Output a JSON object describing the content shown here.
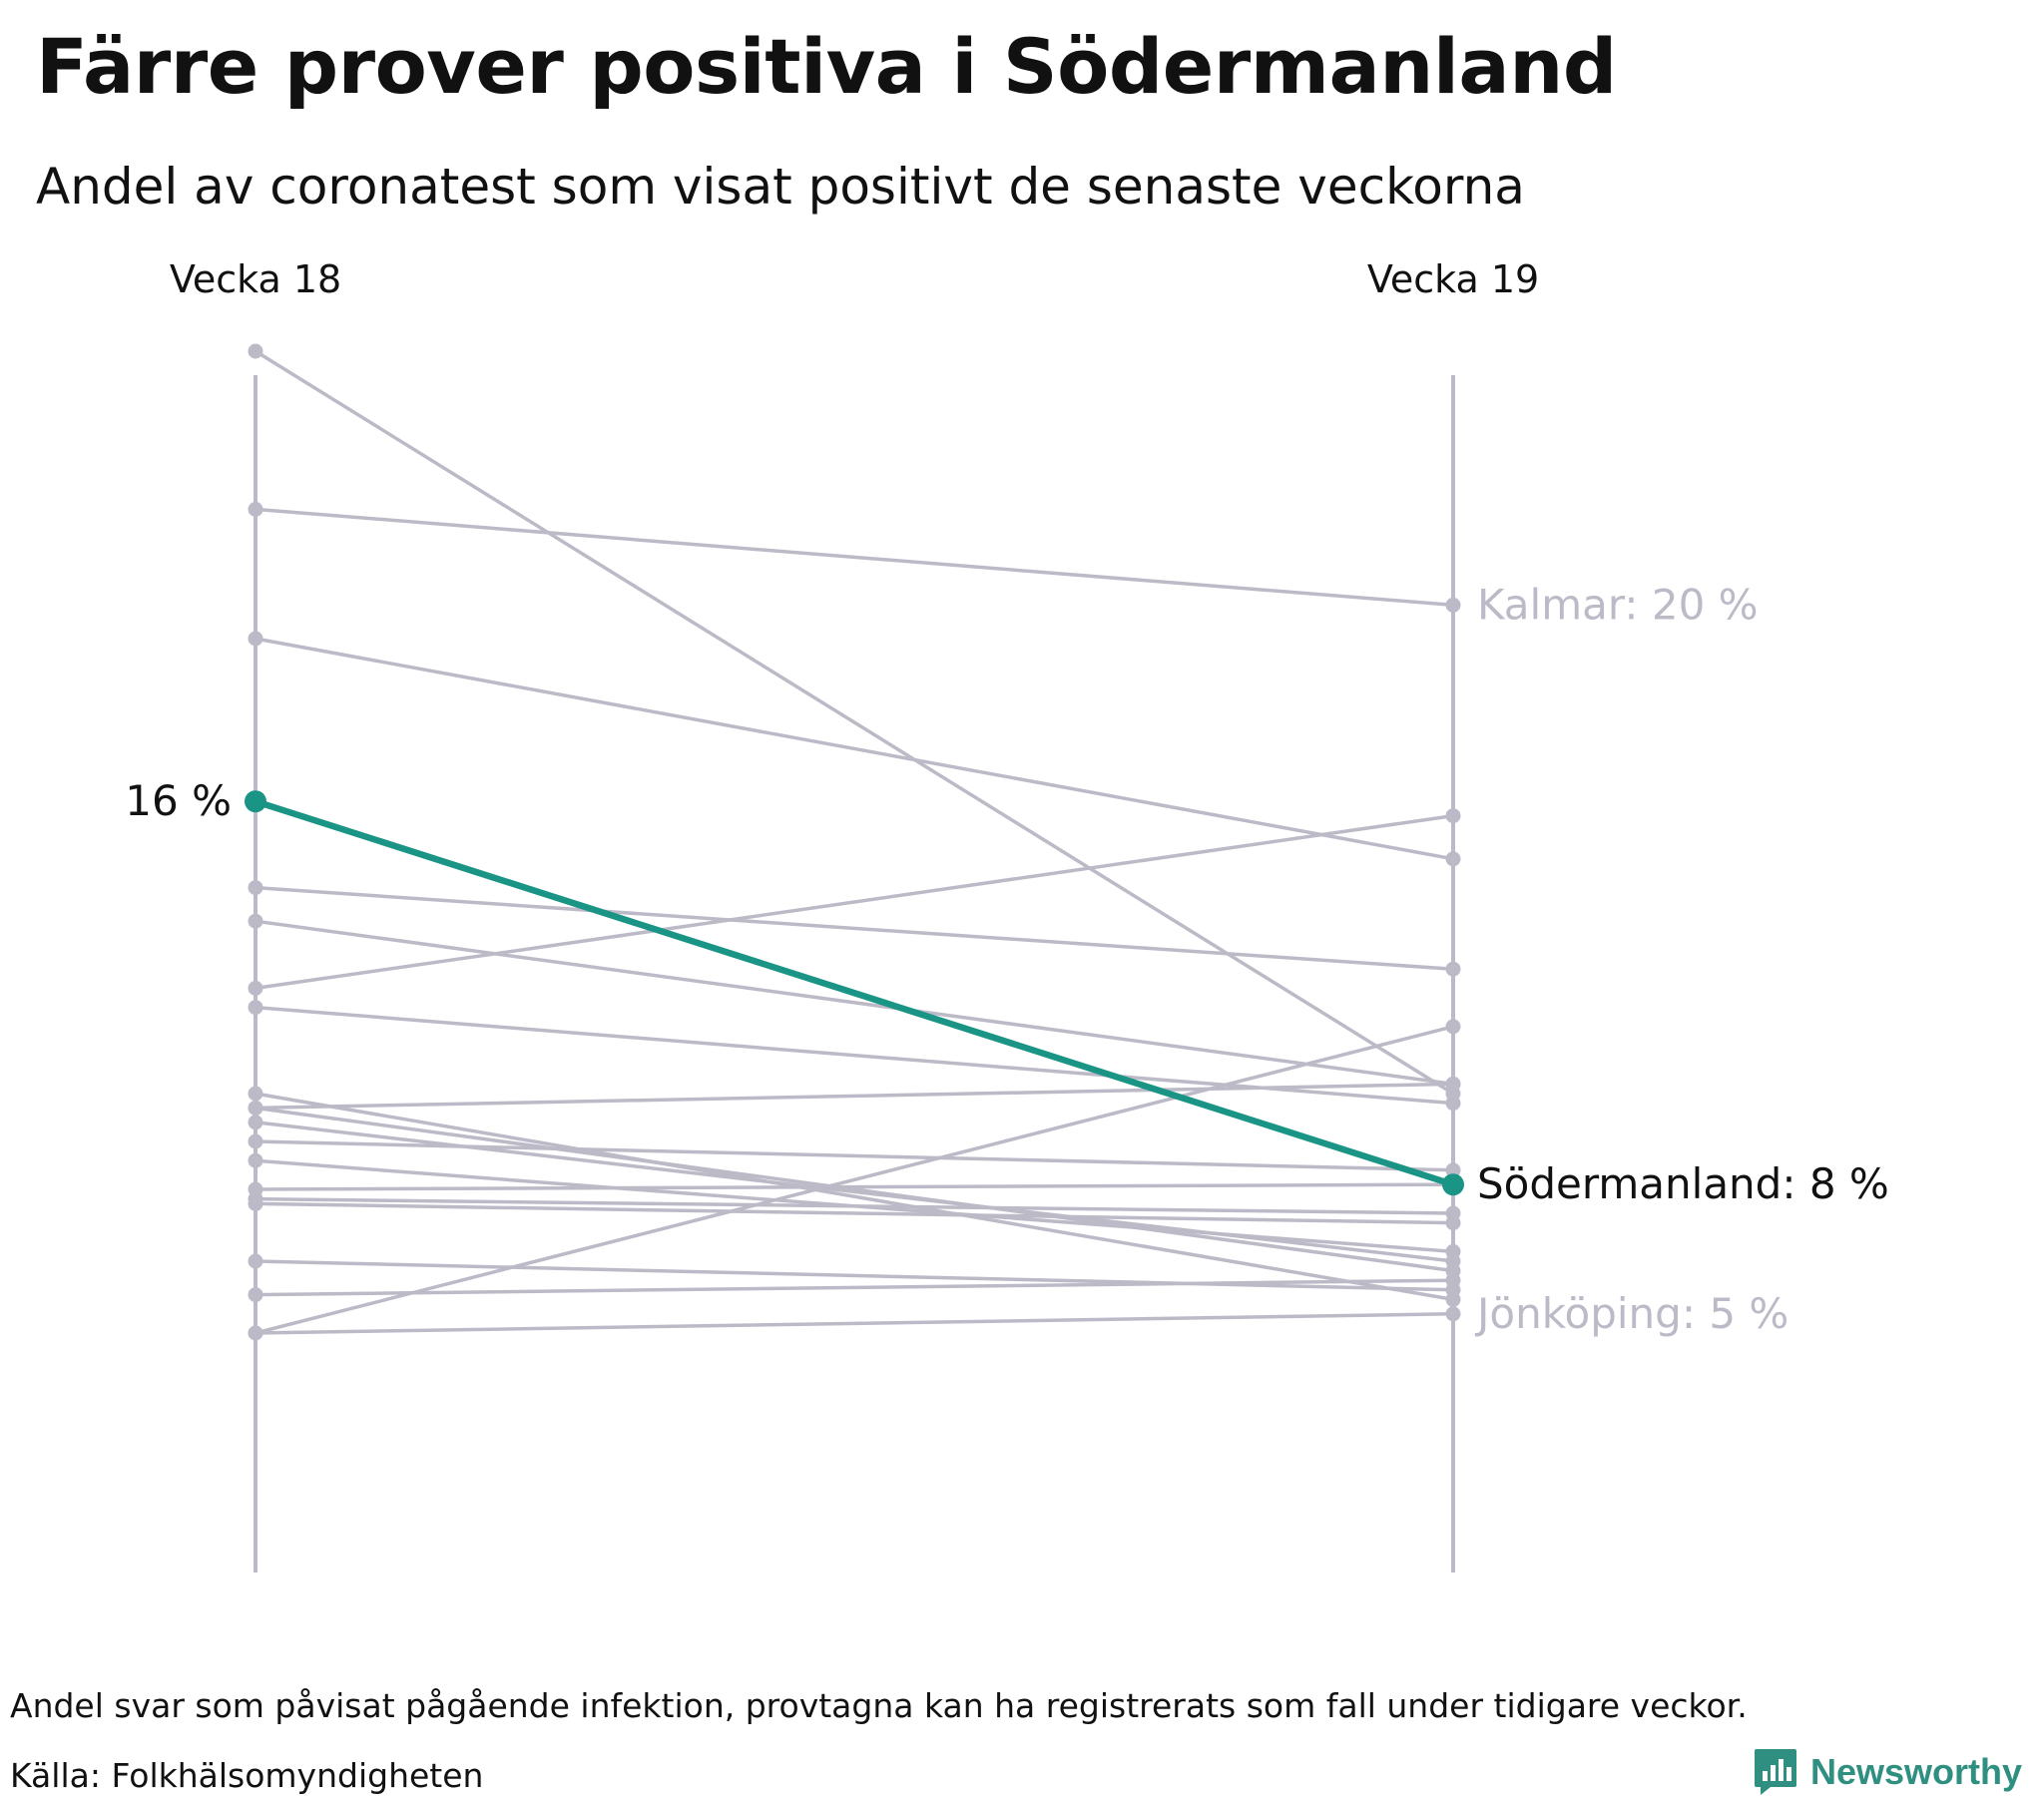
{
  "title": "Färre prover positiva i Södermanland",
  "subtitle": "Andel av coronatest som visat positivt de senaste veckorna",
  "note": "Andel svar som påvisat pågående infektion, provtagna kan ha registrerats som fall under tidigare veckor.",
  "source": "Källa: Folkhälsomyndigheten",
  "brand": {
    "name": "Newsworthy",
    "icon": "bar-chart-logo-icon"
  },
  "colors": {
    "highlight": "#1a9485",
    "muted": "#bdbac8",
    "text": "#111111",
    "muted_text": "#bdbac8"
  },
  "chart_data": {
    "type": "slope",
    "columns": [
      "Vecka 18",
      "Vecka 19"
    ],
    "y_range": [
      0,
      25
    ],
    "highlight": {
      "name": "Södermanland",
      "start_label": "16 %",
      "end_label": "Södermanland: 8 %",
      "values": [
        16.1,
        8.1
      ]
    },
    "labeled_series": [
      {
        "name": "Kalmar",
        "label": "Kalmar: 20 %",
        "values": [
          22.2,
          20.2
        ]
      },
      {
        "name": "Jönköping",
        "label": "Jönköping: 5 %",
        "values": [
          5.0,
          5.4
        ]
      }
    ],
    "other_series": [
      [
        25.5,
        10.0
      ],
      [
        19.5,
        14.9
      ],
      [
        14.3,
        12.6
      ],
      [
        13.6,
        10.2
      ],
      [
        12.2,
        15.8
      ],
      [
        11.8,
        9.8
      ],
      [
        10.0,
        5.7
      ],
      [
        9.7,
        10.2
      ],
      [
        9.4,
        6.5
      ],
      [
        9.0,
        8.4
      ],
      [
        8.6,
        6.7
      ],
      [
        8.0,
        8.1
      ],
      [
        7.8,
        7.5
      ],
      [
        7.7,
        7.3
      ],
      [
        6.5,
        5.9
      ],
      [
        5.8,
        6.1
      ],
      [
        5.0,
        11.4
      ],
      [
        9.7,
        6.3
      ]
    ]
  }
}
